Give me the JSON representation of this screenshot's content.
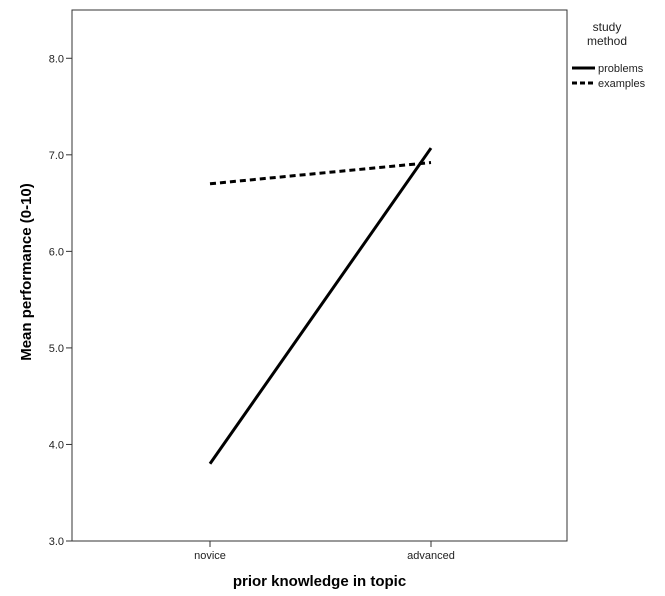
{
  "chart_data": {
    "type": "line",
    "title": "",
    "xlabel": "prior knowledge in topic",
    "ylabel": "Mean performance (0-10)",
    "categories": [
      "novice",
      "advanced"
    ],
    "ylim": [
      3.0,
      8.5
    ],
    "yticks": [
      "3.0",
      "4.0",
      "5.0",
      "6.0",
      "7.0",
      "8.0"
    ],
    "grid": false,
    "legend": {
      "title_lines": [
        "study",
        "method"
      ],
      "placement": "right-top"
    },
    "series": [
      {
        "name": "problems",
        "values": [
          3.8,
          7.07
        ],
        "line_style": "solid",
        "color": "#000000"
      },
      {
        "name": "examples",
        "values": [
          6.7,
          6.92
        ],
        "line_style": "dashed",
        "color": "#000000"
      }
    ]
  }
}
